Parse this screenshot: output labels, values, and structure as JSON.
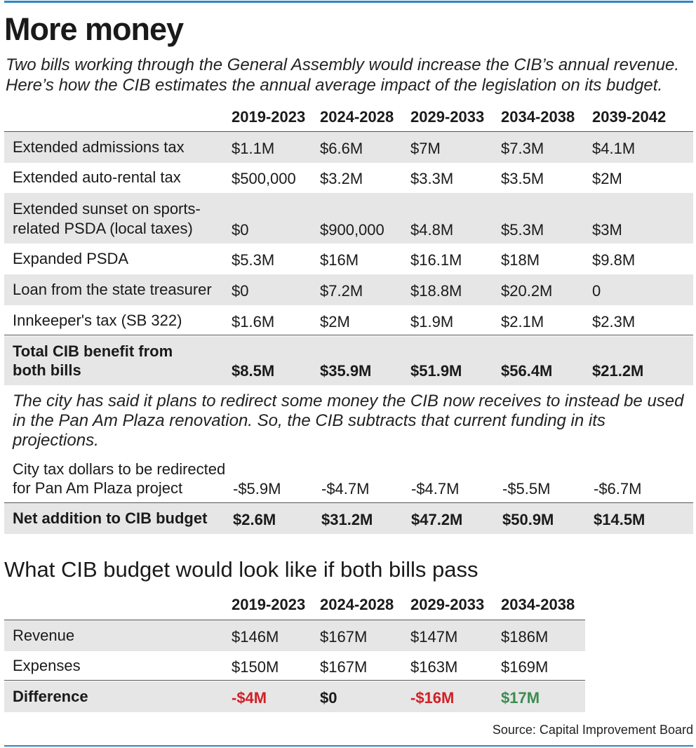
{
  "title": "More money",
  "intro": "Two bills working through the General Assembly would increase the CIB’s annual revenue. Here’s how the CIB estimates the annual average impact of the legislation on its budget.",
  "table1": {
    "columns": [
      "2019-2023",
      "2024-2028",
      "2029-2033",
      "2034-2038",
      "2039-2042"
    ],
    "rows": [
      {
        "label": [
          "Extended admissions tax"
        ],
        "values": [
          "$1.1M",
          "$6.6M",
          "$7M",
          "$7.3M",
          "$4.1M"
        ]
      },
      {
        "label": [
          "Extended auto-rental tax"
        ],
        "values": [
          "$500,000",
          "$3.2M",
          "$3.3M",
          "$3.5M",
          "$2M"
        ]
      },
      {
        "label": [
          "Extended sunset on sports-",
          "related PSDA (local taxes)"
        ],
        "values": [
          "$0",
          "$900,000",
          "$4.8M",
          "$5.3M",
          "$3M"
        ]
      },
      {
        "label": [
          "Expanded PSDA"
        ],
        "values": [
          "$5.3M",
          "$16M",
          "$16.1M",
          "$18M",
          "$9.8M"
        ]
      },
      {
        "label": [
          "Loan from the state treasurer"
        ],
        "values": [
          "$0",
          "$7.2M",
          "$18.8M",
          "$20.2M",
          "0"
        ]
      },
      {
        "label": [
          "Innkeeper's tax (SB 322)"
        ],
        "values": [
          "$1.6M",
          "$2M",
          "$1.9M",
          "$2.1M",
          "$2.3M"
        ]
      }
    ],
    "total": {
      "label": [
        "Total CIB benefit from",
        "both bills"
      ],
      "values": [
        "$8.5M",
        "$35.9M",
        "$51.9M",
        "$56.4M",
        "$21.2M"
      ]
    },
    "note": "The city has said it plans to redirect some money the CIB now receives to instead be used in the Pan Am Plaza renovation. So, the CIB subtracts that current funding in its projections.",
    "redirect": {
      "label": [
        "City tax dollars to be redirected",
        "for Pan Am Plaza project"
      ],
      "values": [
        "-$5.9M",
        "-$4.7M",
        "-$4.7M",
        "-$5.5M",
        "-$6.7M"
      ]
    },
    "net": {
      "label": [
        "Net addition to CIB budget"
      ],
      "values": [
        "$2.6M",
        "$31.2M",
        "$47.2M",
        "$50.9M",
        "$14.5M"
      ]
    }
  },
  "subtitle": "What CIB budget would look like if both bills pass",
  "table2": {
    "columns": [
      "2019-2023",
      "2024-2028",
      "2029-2033",
      "2034-2038"
    ],
    "rows": [
      {
        "label": "Revenue",
        "values": [
          "$146M",
          "$167M",
          "$147M",
          "$186M"
        ]
      },
      {
        "label": "Expenses",
        "values": [
          "$150M",
          "$167M",
          "$163M",
          "$169M"
        ]
      }
    ],
    "difference": {
      "label": "Difference",
      "values": [
        "-$4M",
        "$0",
        "-$16M",
        "$17M"
      ]
    }
  },
  "colors": {
    "negative": "#d21f26",
    "positive": "#3b8d4f",
    "rule": "#2f86c4",
    "shade": "#e6e6e6"
  },
  "source": "Source: Capital Improvement Board"
}
